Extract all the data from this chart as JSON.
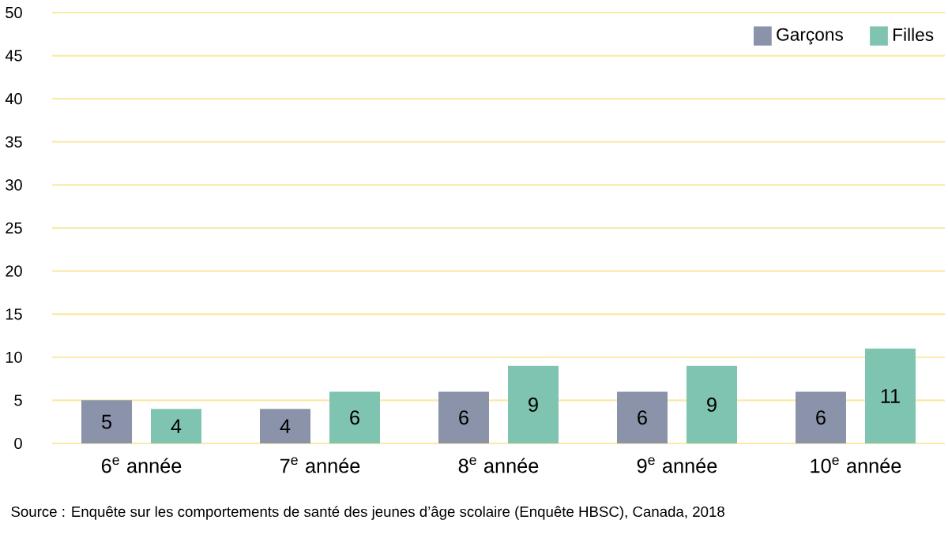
{
  "chart_data": {
    "type": "bar",
    "categories": [
      "6$^{e}$ année",
      "7$^{e}$ année",
      "8$^{e}$ année",
      "9$^{e}$ année",
      "10$^{e}$ année"
    ],
    "series": [
      {
        "name": "Garçons",
        "color": "#8a93aa",
        "values": [
          5,
          4,
          6,
          6,
          6
        ]
      },
      {
        "name": "Filles",
        "color": "#7fc4b0",
        "values": [
          4,
          6,
          9,
          9,
          11
        ]
      }
    ],
    "ylim": [
      0,
      50
    ],
    "yticks": [
      0,
      5,
      10,
      15,
      20,
      25,
      30,
      35,
      40,
      45,
      50
    ],
    "grid": "y",
    "legend": "top right",
    "data_labels": true,
    "annotations": [
      "Source : Enquête sur les comportements de santé des jeunes d’âge scolaire (Enquête HBSC), Canada, 2018"
    ]
  }
}
